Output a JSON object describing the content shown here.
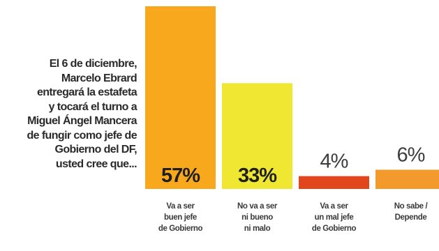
{
  "question": {
    "lines": [
      "El 6 de diciembre,",
      "Marcelo Ebrard",
      "entregará la estafeta",
      "y tocará el turno a",
      "Miguel Ángel Mancera",
      "de fungir como jefe de",
      "Gobierno del DF,",
      "usted cree que..."
    ]
  },
  "chart_data": {
    "type": "bar",
    "categories": [
      [
        "Va a ser",
        "buen jefe",
        "de Gobierno"
      ],
      [
        "No va a ser",
        "ni bueno",
        "ni malo"
      ],
      [
        "Va a ser",
        "un mal jefe",
        "de Gobierno"
      ],
      [
        "No sabe /",
        "Depende"
      ]
    ],
    "values": [
      57,
      33,
      4,
      6
    ],
    "value_labels": [
      "57%",
      "33%",
      "4%",
      "6%"
    ],
    "colors": [
      "#f7a81c",
      "#efe731",
      "#e2461d",
      "#f39a2c"
    ],
    "ylim": [
      0,
      57
    ],
    "grid": false,
    "legend": "none"
  }
}
